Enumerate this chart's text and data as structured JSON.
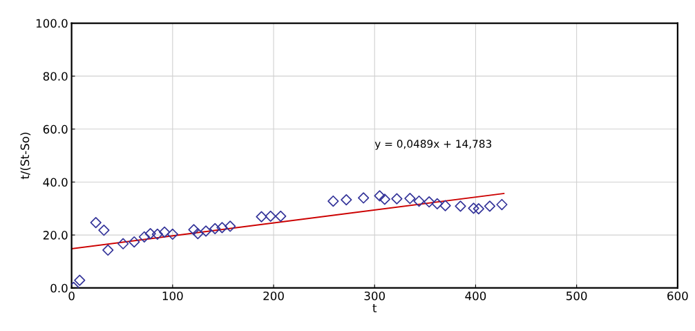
{
  "chart_data": {
    "type": "scatter",
    "xlabel": "t",
    "ylabel": "t/(St-So)",
    "xlim": [
      0,
      600
    ],
    "xticks": [
      0,
      100,
      200,
      300,
      400,
      500,
      600
    ],
    "ylim": [
      0,
      100
    ],
    "yticks": [
      {
        "value": 0,
        "label": "0.0"
      },
      {
        "value": 20,
        "label": "20.0"
      },
      {
        "value": 40,
        "label": "40.0"
      },
      {
        "value": 60,
        "label": "60.0"
      },
      {
        "value": 80,
        "label": "80.0"
      },
      {
        "value": 100,
        "label": "100.0"
      }
    ],
    "grid": true,
    "legend": false,
    "annotations": [
      "y = 0,0489x + 14,783"
    ],
    "series": [
      {
        "marker": "diamond",
        "color": "#333399",
        "x": [
          2,
          8,
          24,
          32,
          36,
          51,
          62,
          72,
          78,
          85,
          92,
          100,
          121,
          125,
          133,
          142,
          149,
          157,
          188,
          197,
          207,
          259,
          272,
          289,
          305,
          310,
          322,
          335,
          344,
          354,
          362,
          370,
          385,
          398,
          403,
          414,
          426
        ],
        "values": [
          0.2,
          2.9,
          24.7,
          21.8,
          14.3,
          16.7,
          17.4,
          19.3,
          20.5,
          20.3,
          21.1,
          20.3,
          22.0,
          20.5,
          21.5,
          22.4,
          22.8,
          23.3,
          26.9,
          27.1,
          27.1,
          32.8,
          33.3,
          34.0,
          34.8,
          33.5,
          33.7,
          33.8,
          32.8,
          32.5,
          31.8,
          31.1,
          30.9,
          30.1,
          29.9,
          30.9,
          31.5
        ]
      },
      {
        "type": "line",
        "marker": "none",
        "line_style": "solid",
        "color": "#cc0000",
        "x": [
          0,
          428
        ],
        "values": [
          14.8,
          35.7
        ]
      }
    ]
  }
}
